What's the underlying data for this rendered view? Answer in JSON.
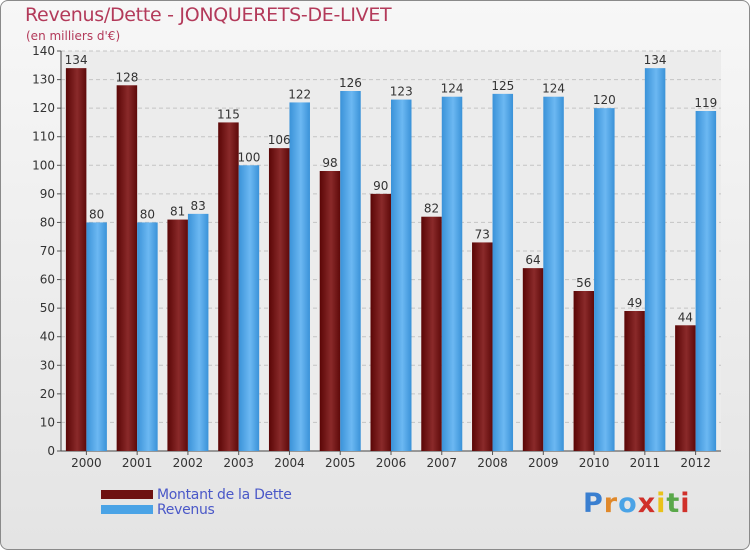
{
  "title": "Revenus/Dette - JONQUERETS-DE-LIVET",
  "subtitle": "(en milliers d'€)",
  "legend": {
    "debt_label": "Montant de la Dette",
    "revenue_label": "Revenus"
  },
  "logo": {
    "text": "Proxiti"
  },
  "colors": {
    "debt": "#6e1212",
    "revenue": "#4aa3e6",
    "title": "#b33a5a",
    "legend_text": "#4a58c8"
  },
  "chart_data": {
    "type": "bar",
    "title": "Revenus/Dette - JONQUERETS-DE-LIVET",
    "subtitle": "(en milliers d'€)",
    "categories": [
      "2000",
      "2001",
      "2002",
      "2003",
      "2004",
      "2005",
      "2006",
      "2007",
      "2008",
      "2009",
      "2010",
      "2011",
      "2012"
    ],
    "series": [
      {
        "name": "Montant de la Dette",
        "values": [
          134,
          128,
          81,
          115,
          106,
          98,
          90,
          82,
          73,
          64,
          56,
          49,
          44
        ]
      },
      {
        "name": "Revenus",
        "values": [
          80,
          80,
          83,
          100,
          122,
          126,
          123,
          124,
          125,
          124,
          120,
          134,
          119
        ]
      }
    ],
    "ylim": [
      0,
      140
    ],
    "yticks": [
      0,
      10,
      20,
      30,
      40,
      50,
      60,
      70,
      80,
      90,
      100,
      110,
      120,
      130,
      140
    ],
    "grid": true,
    "legend_position": "bottom-left"
  }
}
